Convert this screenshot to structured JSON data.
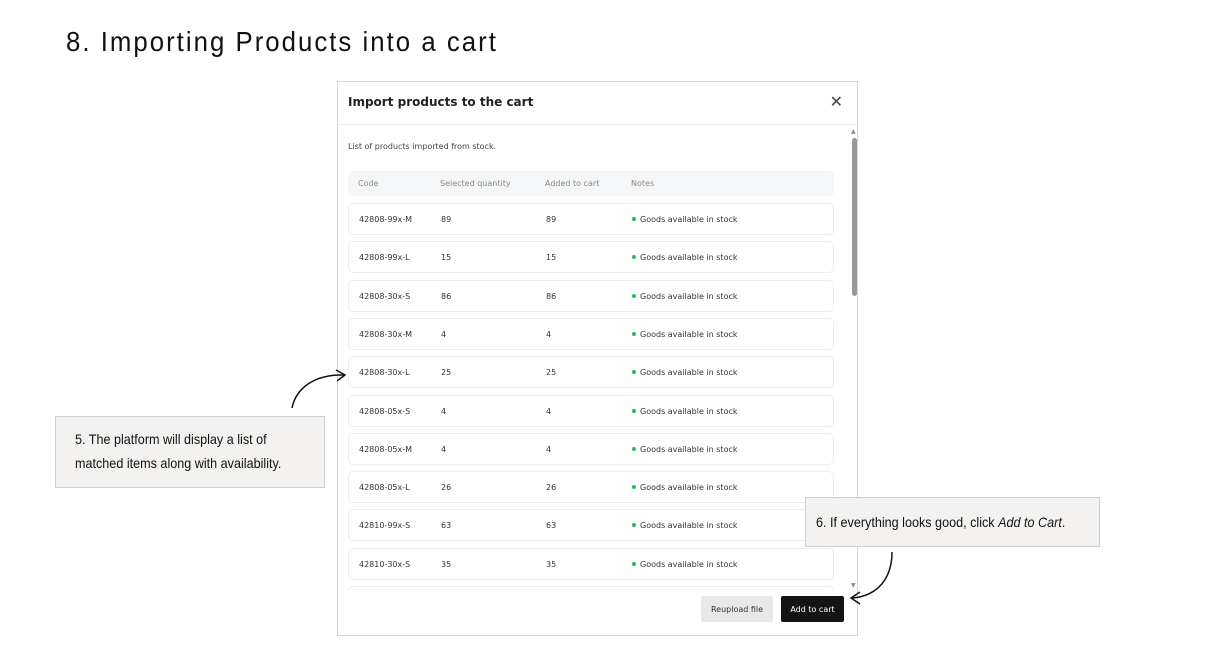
{
  "heading": "8. Importing Products into a cart",
  "modal": {
    "title": "Import products to the cart",
    "close_icon": "close-icon",
    "subtitle": "List of products imported from stock.",
    "columns": [
      "Code",
      "Selected quantity",
      "Added to cart",
      "Notes"
    ],
    "rows": [
      {
        "code": "42808-99x-M",
        "selected": "89",
        "added": "89",
        "note": "Goods available in stock"
      },
      {
        "code": "42808-99x-L",
        "selected": "15",
        "added": "15",
        "note": "Goods available in stock"
      },
      {
        "code": "42808-30x-S",
        "selected": "86",
        "added": "86",
        "note": "Goods available in stock"
      },
      {
        "code": "42808-30x-M",
        "selected": "4",
        "added": "4",
        "note": "Goods available in stock"
      },
      {
        "code": "42808-30x-L",
        "selected": "25",
        "added": "25",
        "note": "Goods available in stock"
      },
      {
        "code": "42808-05x-S",
        "selected": "4",
        "added": "4",
        "note": "Goods available in stock"
      },
      {
        "code": "42808-05x-M",
        "selected": "4",
        "added": "4",
        "note": "Goods available in stock"
      },
      {
        "code": "42808-05x-L",
        "selected": "26",
        "added": "26",
        "note": "Goods available in stock"
      },
      {
        "code": "42810-99x-S",
        "selected": "63",
        "added": "63",
        "note": "Goods available in stock"
      },
      {
        "code": "42810-30x-S",
        "selected": "35",
        "added": "35",
        "note": "Goods available in stock"
      }
    ],
    "status_color": "#2fb45a",
    "reupload_label": "Reupload file",
    "add_label": "Add to cart"
  },
  "callouts": {
    "step5_line1": "5. The platform will display a list of",
    "step5_line2": "matched items along with availability.",
    "step6_prefix": "6. If everything looks good, click ",
    "step6_em": "Add to Cart",
    "step6_suffix": "."
  }
}
